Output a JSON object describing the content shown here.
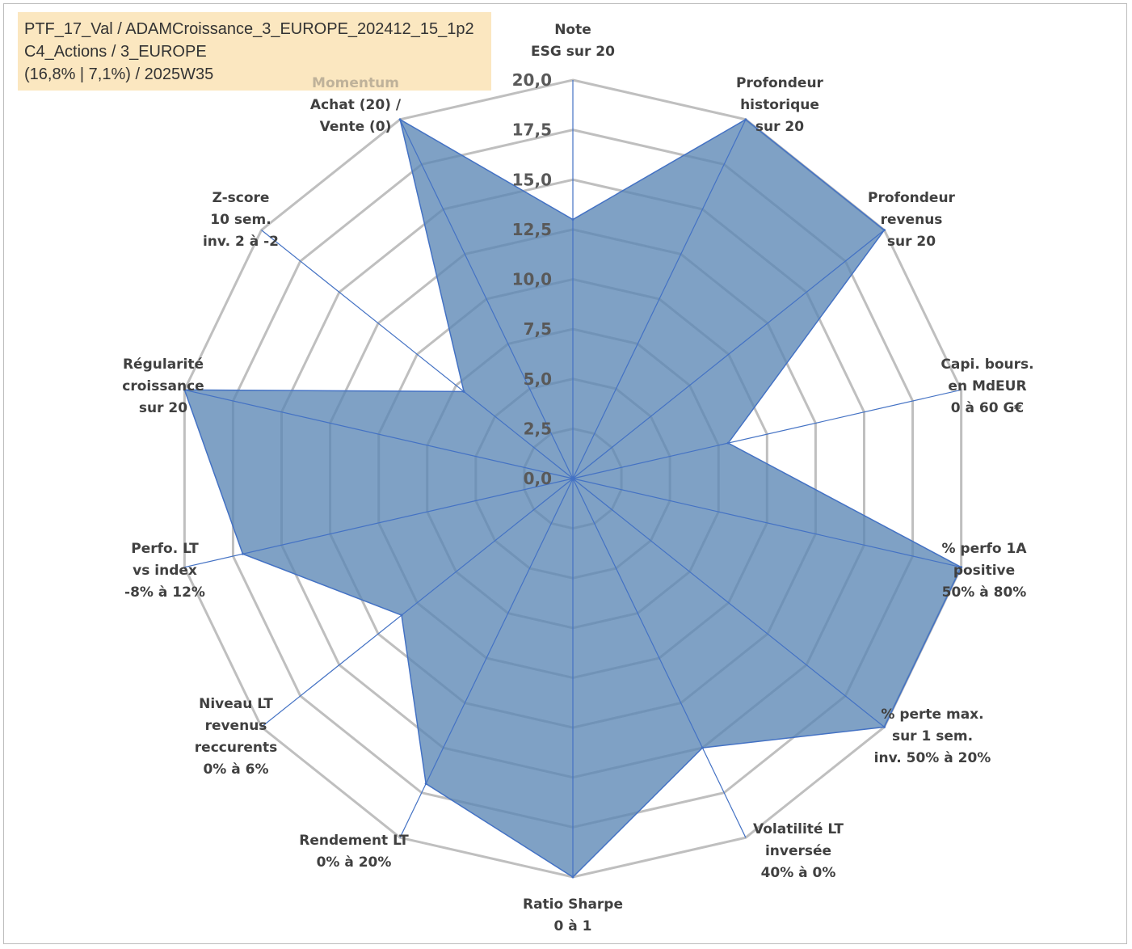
{
  "header": {
    "lines": [
      "PTF_17_Val / ADAMCroissance_3_EUROPE_202412_15_1p2",
      "C4_Actions / 3_EUROPE",
      "(16,8% | 7,1%) / 2025W35"
    ]
  },
  "colors": {
    "fill": "#5b86b5",
    "line": "#4472c4",
    "grid": "#bfbfbf",
    "header_bg": "#fbe7c0",
    "muted_label": "#bfb29a"
  },
  "chart_data": {
    "type": "radar",
    "rlim": [
      0,
      20
    ],
    "ticks": [
      "0,0",
      "2,5",
      "5,0",
      "7,5",
      "10,0",
      "12,5",
      "15,0",
      "17,5",
      "20,0"
    ],
    "grid": true,
    "legend": "none",
    "axes": [
      {
        "label": [
          "Note",
          "ESG sur 20"
        ],
        "value": 13.0
      },
      {
        "label": [
          "Profondeur",
          "historique",
          "sur 20"
        ],
        "value": 20.0
      },
      {
        "label": [
          "Profondeur",
          "revenus",
          "sur 20"
        ],
        "value": 20.0
      },
      {
        "label": [
          "Capi. bours.",
          "en MdEUR",
          "0 à 60 G€"
        ],
        "value": 8.0
      },
      {
        "label": [
          "% perfo 1A",
          "positive",
          "50% à 80%"
        ],
        "value": 20.0
      },
      {
        "label": [
          "% perte max.",
          "sur 1 sem.",
          "inv. 50% à 20%"
        ],
        "value": 20.0
      },
      {
        "label": [
          "Volatilité LT",
          "inversée",
          "40% à 0%"
        ],
        "value": 15.0
      },
      {
        "label": [
          "Ratio Sharpe",
          "0 à 1"
        ],
        "value": 20.0
      },
      {
        "label": [
          "Rendement LT",
          "0% à 20%"
        ],
        "value": 17.0
      },
      {
        "label": [
          "Niveau LT",
          "revenus",
          "reccurents",
          "0% à 6%"
        ],
        "value": 11.0
      },
      {
        "label": [
          "Perfo. LT",
          "vs index",
          "-8% à 12%"
        ],
        "value": 17.0
      },
      {
        "label": [
          "Régularité",
          "croissance",
          "sur 20"
        ],
        "value": 20.0
      },
      {
        "label": [
          "Z-score",
          "10 sem.",
          "inv. 2 à -2"
        ],
        "value": 7.0
      },
      {
        "label": [
          "Momentum",
          "Achat (20) /",
          "Vente (0)"
        ],
        "muted_first_line": true,
        "value": 20.0
      }
    ]
  }
}
